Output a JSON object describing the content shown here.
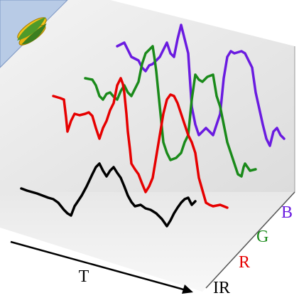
{
  "labels": {
    "time": "T",
    "ir": "IR",
    "r": "R",
    "g": "G",
    "b": "B"
  }
}
